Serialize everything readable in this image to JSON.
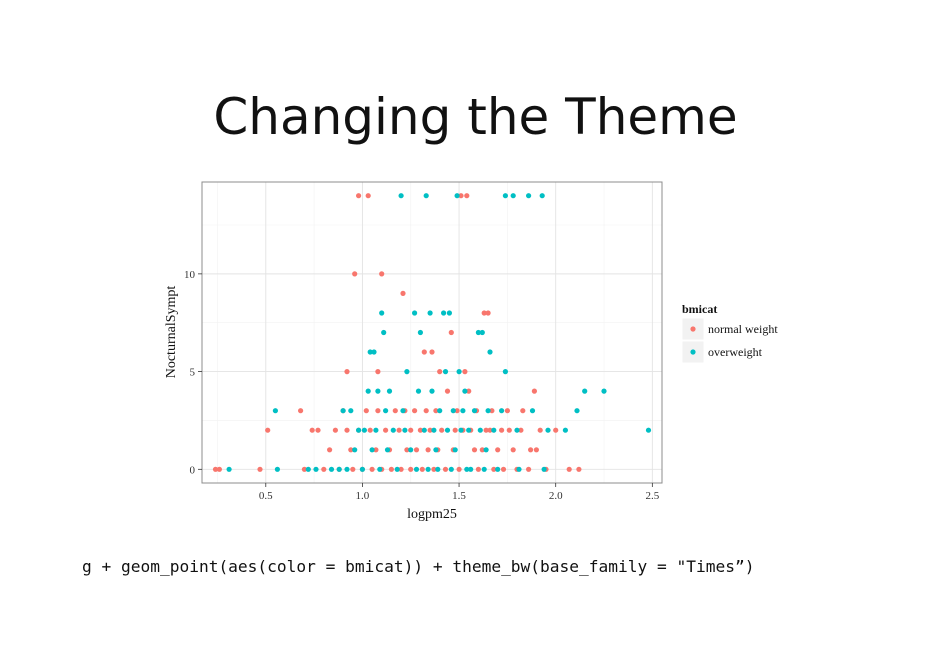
{
  "slide": {
    "title": "Changing the Theme",
    "code": "g + geom_point(aes(color = bmicat)) + theme_bw(base_family = \"Times”)"
  },
  "chart_data": {
    "type": "scatter",
    "xlabel": "logpm25",
    "ylabel": "NocturnalSympt",
    "xlim": [
      0.17,
      2.55
    ],
    "ylim": [
      -0.7,
      14.7
    ],
    "x_ticks": [
      0.5,
      1.0,
      1.5,
      2.0,
      2.5
    ],
    "x_tick_labels": [
      "0.5",
      "1.0",
      "1.5",
      "2.0",
      "2.5"
    ],
    "y_ticks": [
      0,
      5,
      10
    ],
    "y_tick_labels": [
      "0",
      "5",
      "10"
    ],
    "grid": true,
    "legend": {
      "title": "bmicat",
      "placement": "right"
    },
    "series": [
      {
        "name": "normal weight",
        "color": "#F8766D",
        "points": [
          [
            0.24,
            0
          ],
          [
            0.26,
            0
          ],
          [
            0.47,
            0
          ],
          [
            0.51,
            2
          ],
          [
            0.68,
            3
          ],
          [
            0.7,
            0
          ],
          [
            0.74,
            2
          ],
          [
            0.77,
            2
          ],
          [
            0.8,
            0
          ],
          [
            0.83,
            1
          ],
          [
            0.86,
            2
          ],
          [
            0.88,
            0
          ],
          [
            0.9,
            3
          ],
          [
            0.92,
            2
          ],
          [
            0.92,
            5
          ],
          [
            0.94,
            1
          ],
          [
            0.95,
            0
          ],
          [
            0.96,
            10
          ],
          [
            0.98,
            2
          ],
          [
            0.98,
            14
          ],
          [
            1.0,
            0
          ],
          [
            1.02,
            3
          ],
          [
            1.03,
            14
          ],
          [
            1.04,
            2
          ],
          [
            1.05,
            0
          ],
          [
            1.07,
            1
          ],
          [
            1.08,
            5
          ],
          [
            1.08,
            3
          ],
          [
            1.1,
            10
          ],
          [
            1.1,
            0
          ],
          [
            1.12,
            2
          ],
          [
            1.14,
            1
          ],
          [
            1.15,
            0
          ],
          [
            1.17,
            3
          ],
          [
            1.19,
            2
          ],
          [
            1.2,
            0
          ],
          [
            1.21,
            9
          ],
          [
            1.22,
            3
          ],
          [
            1.23,
            1
          ],
          [
            1.25,
            2
          ],
          [
            1.25,
            0
          ],
          [
            1.27,
            3
          ],
          [
            1.28,
            1
          ],
          [
            1.3,
            2
          ],
          [
            1.31,
            0
          ],
          [
            1.32,
            6
          ],
          [
            1.33,
            3
          ],
          [
            1.34,
            1
          ],
          [
            1.35,
            2
          ],
          [
            1.36,
            6
          ],
          [
            1.37,
            0
          ],
          [
            1.38,
            3
          ],
          [
            1.39,
            1
          ],
          [
            1.4,
            5
          ],
          [
            1.41,
            2
          ],
          [
            1.43,
            0
          ],
          [
            1.44,
            4
          ],
          [
            1.46,
            7
          ],
          [
            1.47,
            1
          ],
          [
            1.48,
            2
          ],
          [
            1.49,
            3
          ],
          [
            1.5,
            0
          ],
          [
            1.51,
            14
          ],
          [
            1.52,
            2
          ],
          [
            1.53,
            5
          ],
          [
            1.54,
            14
          ],
          [
            1.55,
            4
          ],
          [
            1.56,
            2
          ],
          [
            1.58,
            1
          ],
          [
            1.59,
            3
          ],
          [
            1.6,
            0
          ],
          [
            1.62,
            1
          ],
          [
            1.63,
            8
          ],
          [
            1.64,
            2
          ],
          [
            1.65,
            8
          ],
          [
            1.66,
            2
          ],
          [
            1.67,
            3
          ],
          [
            1.68,
            0
          ],
          [
            1.7,
            1
          ],
          [
            1.72,
            2
          ],
          [
            1.73,
            0
          ],
          [
            1.75,
            3
          ],
          [
            1.76,
            2
          ],
          [
            1.78,
            1
          ],
          [
            1.8,
            0
          ],
          [
            1.82,
            2
          ],
          [
            1.83,
            3
          ],
          [
            1.86,
            0
          ],
          [
            1.87,
            1
          ],
          [
            1.89,
            4
          ],
          [
            1.9,
            1
          ],
          [
            1.92,
            2
          ],
          [
            1.95,
            0
          ],
          [
            2.0,
            2
          ],
          [
            2.07,
            0
          ],
          [
            2.12,
            0
          ]
        ]
      },
      {
        "name": "overweight",
        "color": "#00BFC4",
        "points": [
          [
            0.31,
            0
          ],
          [
            0.55,
            3
          ],
          [
            0.56,
            0
          ],
          [
            0.72,
            0
          ],
          [
            0.76,
            0
          ],
          [
            0.84,
            0
          ],
          [
            0.88,
            0
          ],
          [
            0.9,
            3
          ],
          [
            0.92,
            0
          ],
          [
            0.94,
            3
          ],
          [
            0.96,
            1
          ],
          [
            0.98,
            2
          ],
          [
            1.0,
            0
          ],
          [
            1.01,
            2
          ],
          [
            1.03,
            4
          ],
          [
            1.04,
            6
          ],
          [
            1.05,
            1
          ],
          [
            1.06,
            6
          ],
          [
            1.07,
            2
          ],
          [
            1.08,
            4
          ],
          [
            1.09,
            0
          ],
          [
            1.1,
            8
          ],
          [
            1.11,
            7
          ],
          [
            1.12,
            3
          ],
          [
            1.13,
            1
          ],
          [
            1.14,
            4
          ],
          [
            1.16,
            2
          ],
          [
            1.18,
            0
          ],
          [
            1.2,
            14
          ],
          [
            1.21,
            3
          ],
          [
            1.22,
            2
          ],
          [
            1.23,
            5
          ],
          [
            1.25,
            1
          ],
          [
            1.27,
            8
          ],
          [
            1.28,
            0
          ],
          [
            1.29,
            4
          ],
          [
            1.3,
            7
          ],
          [
            1.32,
            2
          ],
          [
            1.33,
            14
          ],
          [
            1.34,
            0
          ],
          [
            1.35,
            8
          ],
          [
            1.36,
            4
          ],
          [
            1.37,
            2
          ],
          [
            1.38,
            1
          ],
          [
            1.39,
            0
          ],
          [
            1.4,
            3
          ],
          [
            1.42,
            8
          ],
          [
            1.43,
            5
          ],
          [
            1.44,
            2
          ],
          [
            1.45,
            8
          ],
          [
            1.46,
            0
          ],
          [
            1.47,
            3
          ],
          [
            1.48,
            1
          ],
          [
            1.49,
            14
          ],
          [
            1.5,
            5
          ],
          [
            1.51,
            2
          ],
          [
            1.52,
            3
          ],
          [
            1.53,
            4
          ],
          [
            1.54,
            0
          ],
          [
            1.55,
            2
          ],
          [
            1.56,
            0
          ],
          [
            1.58,
            3
          ],
          [
            1.6,
            7
          ],
          [
            1.61,
            2
          ],
          [
            1.62,
            7
          ],
          [
            1.63,
            0
          ],
          [
            1.64,
            1
          ],
          [
            1.65,
            3
          ],
          [
            1.66,
            6
          ],
          [
            1.68,
            2
          ],
          [
            1.7,
            0
          ],
          [
            1.72,
            3
          ],
          [
            1.74,
            5
          ],
          [
            1.74,
            14
          ],
          [
            1.78,
            14
          ],
          [
            1.8,
            2
          ],
          [
            1.81,
            0
          ],
          [
            1.86,
            14
          ],
          [
            1.88,
            3
          ],
          [
            1.93,
            14
          ],
          [
            1.94,
            0
          ],
          [
            1.96,
            2
          ],
          [
            2.05,
            2
          ],
          [
            2.11,
            3
          ],
          [
            2.15,
            4
          ],
          [
            2.25,
            4
          ],
          [
            2.48,
            2
          ]
        ]
      }
    ]
  }
}
